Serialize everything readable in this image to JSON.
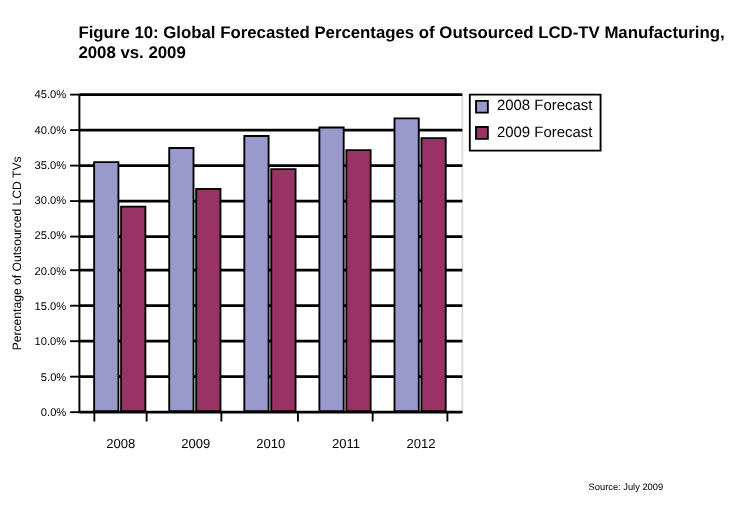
{
  "chart_data": {
    "type": "bar",
    "title": "Figure 10: Global Forecasted Percentages of Outsourced LCD-TV Manufacturing, 2008 vs. 2009",
    "ylabel": "Percentage of Outsourced LCD TVs",
    "categories": [
      "2008",
      "2009",
      "2010",
      "2011",
      "2012"
    ],
    "series": [
      {
        "name": "2008 Forecast",
        "color": "#9999cc",
        "values": [
          35.3,
          37.3,
          39.0,
          40.2,
          41.5
        ]
      },
      {
        "name": "2009 Forecast",
        "color": "#993366",
        "values": [
          29.0,
          31.5,
          34.3,
          37.0,
          38.7
        ]
      }
    ],
    "ylim": [
      0,
      45
    ],
    "yticks": [
      {
        "value": 0,
        "label": "0.0%"
      },
      {
        "value": 5,
        "label": "5.0%"
      },
      {
        "value": 10,
        "label": "10.0%"
      },
      {
        "value": 15,
        "label": "15.0%"
      },
      {
        "value": 20,
        "label": "20.0%"
      },
      {
        "value": 25,
        "label": "25.0%"
      },
      {
        "value": 30,
        "label": "30.0%"
      },
      {
        "value": 35,
        "label": "35.0%"
      },
      {
        "value": 40,
        "label": "40.0%"
      },
      {
        "value": 45,
        "label": "45.0%"
      }
    ],
    "grid": "y",
    "legend": "right",
    "annotations": [
      "Source: July 2009"
    ]
  }
}
